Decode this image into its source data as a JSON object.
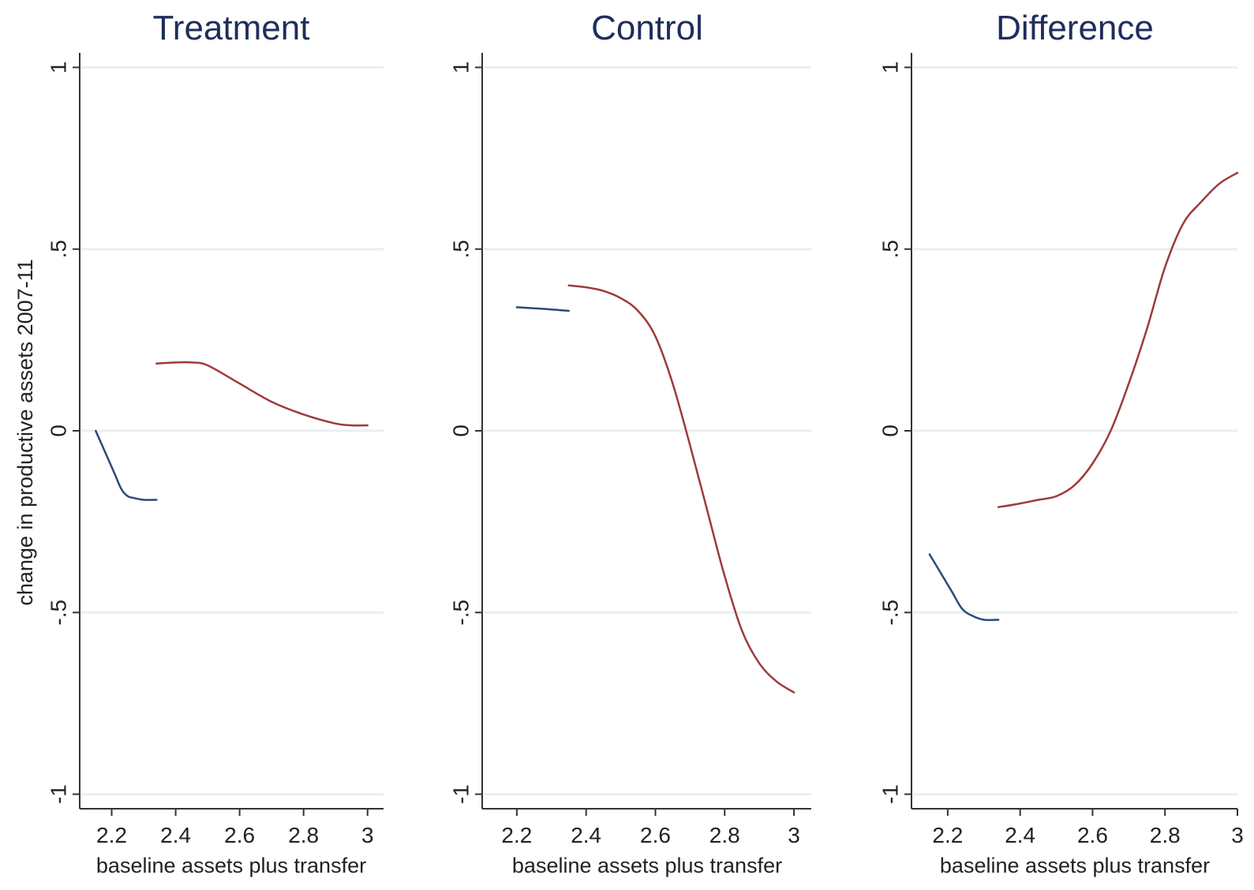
{
  "chart_data": [
    {
      "type": "line",
      "title": "Treatment",
      "xlabel": "baseline assets plus transfer",
      "ylabel": "change in productive assets 2007-11",
      "xlim": [
        2.1,
        3.05
      ],
      "ylim": [
        -1.04,
        1.04
      ],
      "xticks": [
        2.2,
        2.4,
        2.6,
        2.8,
        3
      ],
      "xtick_labels": [
        "2.2",
        "2.4",
        "2.6",
        "2.8",
        "3"
      ],
      "yticks": [
        -1,
        -0.5,
        0,
        0.5,
        1
      ],
      "ytick_labels": [
        "-1",
        "-.5",
        "0",
        ".5",
        "1"
      ],
      "grid": true,
      "series": [
        {
          "color": "#2b4a7a",
          "x": [
            2.15,
            2.17,
            2.19,
            2.21,
            2.23,
            2.25,
            2.27,
            2.3,
            2.34
          ],
          "y": [
            0.0,
            -0.04,
            -0.08,
            -0.12,
            -0.16,
            -0.18,
            -0.185,
            -0.19,
            -0.19
          ]
        },
        {
          "color": "#9e3a3a",
          "x": [
            2.34,
            2.4,
            2.45,
            2.5,
            2.6,
            2.7,
            2.8,
            2.9,
            2.95,
            3.0
          ],
          "y": [
            0.185,
            0.188,
            0.188,
            0.18,
            0.13,
            0.08,
            0.045,
            0.02,
            0.015,
            0.015
          ]
        }
      ]
    },
    {
      "type": "line",
      "title": "Control",
      "xlabel": "baseline assets plus transfer",
      "ylabel": "",
      "xlim": [
        2.1,
        3.05
      ],
      "ylim": [
        -1.04,
        1.04
      ],
      "xticks": [
        2.2,
        2.4,
        2.6,
        2.8,
        3
      ],
      "xtick_labels": [
        "2.2",
        "2.4",
        "2.6",
        "2.8",
        "3"
      ],
      "yticks": [
        -1,
        -0.5,
        0,
        0.5,
        1
      ],
      "ytick_labels": [
        "-1",
        "-.5",
        "0",
        ".5",
        "1"
      ],
      "grid": true,
      "series": [
        {
          "color": "#2b4a7a",
          "x": [
            2.2,
            2.25,
            2.3,
            2.35
          ],
          "y": [
            0.34,
            0.337,
            0.334,
            0.33
          ]
        },
        {
          "color": "#9e3a3a",
          "x": [
            2.35,
            2.4,
            2.45,
            2.5,
            2.55,
            2.6,
            2.65,
            2.7,
            2.75,
            2.8,
            2.85,
            2.9,
            2.95,
            3.0
          ],
          "y": [
            0.4,
            0.395,
            0.385,
            0.365,
            0.33,
            0.26,
            0.13,
            -0.04,
            -0.22,
            -0.4,
            -0.55,
            -0.64,
            -0.69,
            -0.72
          ]
        }
      ]
    },
    {
      "type": "line",
      "title": "Difference",
      "xlabel": "baseline assets plus transfer",
      "ylabel": "",
      "xlim": [
        2.1,
        3.0
      ],
      "ylim": [
        -1.04,
        1.04
      ],
      "xticks": [
        2.2,
        2.4,
        2.6,
        2.8,
        3
      ],
      "xtick_labels": [
        "2.2",
        "2.4",
        "2.6",
        "2.8",
        "3"
      ],
      "yticks": [
        -1,
        -0.5,
        0,
        0.5,
        1
      ],
      "ytick_labels": [
        "-1",
        "-.5",
        "0",
        ".5",
        "1"
      ],
      "grid": true,
      "series": [
        {
          "color": "#2b4a7a",
          "x": [
            2.15,
            2.18,
            2.21,
            2.24,
            2.27,
            2.3,
            2.34
          ],
          "y": [
            -0.34,
            -0.39,
            -0.44,
            -0.49,
            -0.51,
            -0.52,
            -0.52
          ]
        },
        {
          "color": "#9e3a3a",
          "x": [
            2.34,
            2.4,
            2.45,
            2.5,
            2.55,
            2.6,
            2.65,
            2.7,
            2.75,
            2.8,
            2.85,
            2.9,
            2.95,
            3.0
          ],
          "y": [
            -0.21,
            -0.2,
            -0.19,
            -0.18,
            -0.15,
            -0.09,
            0.0,
            0.13,
            0.28,
            0.45,
            0.57,
            0.63,
            0.68,
            0.71
          ]
        }
      ]
    }
  ]
}
